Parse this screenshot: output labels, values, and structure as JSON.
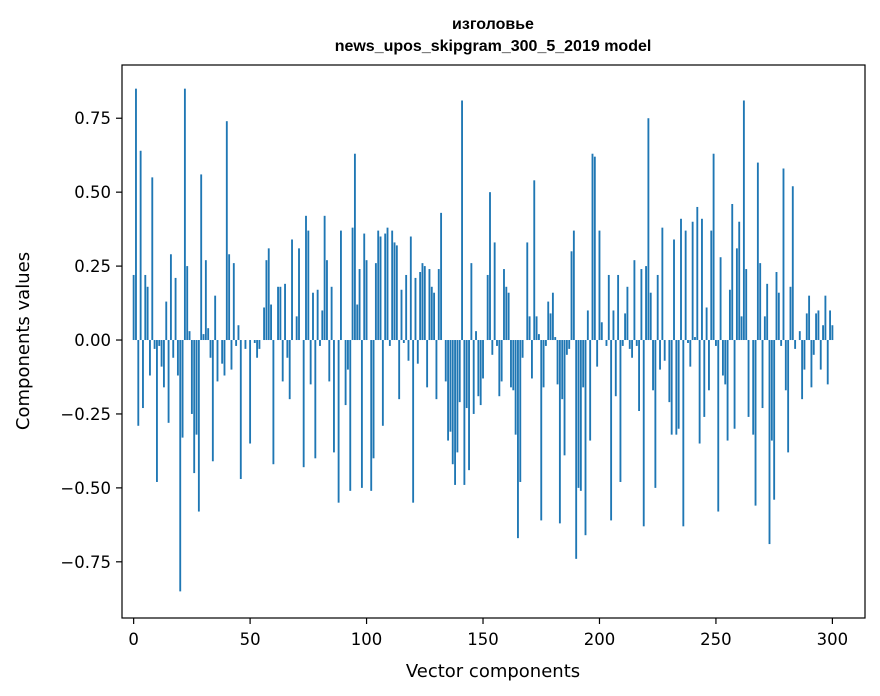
{
  "chart_data": {
    "type": "bar",
    "title": "изголовье",
    "subtitle": "news_upos_skipgram_300_5_2019 model",
    "xlabel": "Vector components",
    "ylabel": "Components values",
    "xlim": [
      -5,
      314
    ],
    "ylim": [
      -0.94,
      0.93
    ],
    "xticks": [
      0,
      50,
      100,
      150,
      200,
      250,
      300
    ],
    "xtick_labels": [
      "0",
      "50",
      "100",
      "150",
      "200",
      "250",
      "300"
    ],
    "yticks": [
      -0.75,
      -0.5,
      -0.25,
      0.0,
      0.25,
      0.5,
      0.75
    ],
    "ytick_labels": [
      "−0.75",
      "−0.50",
      "−0.25",
      "0.00",
      "0.25",
      "0.50",
      "0.75"
    ],
    "grid": false,
    "color": "#1f77b4",
    "x_start": 0,
    "values": [
      0.22,
      0.85,
      -0.29,
      0.64,
      -0.23,
      0.22,
      0.18,
      -0.12,
      0.55,
      -0.03,
      -0.48,
      -0.02,
      -0.09,
      -0.16,
      0.13,
      -0.28,
      0.29,
      -0.06,
      0.21,
      -0.12,
      -0.85,
      -0.33,
      0.85,
      0.25,
      0.03,
      -0.25,
      -0.45,
      -0.32,
      -0.58,
      0.56,
      0.02,
      0.27,
      0.04,
      -0.06,
      -0.41,
      0.15,
      -0.14,
      0.0,
      -0.08,
      -0.12,
      0.74,
      0.29,
      -0.1,
      0.26,
      -0.02,
      0.05,
      -0.47,
      0.0,
      -0.03,
      0.0,
      -0.35,
      0.0,
      -0.01,
      -0.06,
      -0.03,
      0.0,
      0.11,
      0.27,
      0.31,
      0.12,
      -0.42,
      0.0,
      0.18,
      0.18,
      -0.14,
      0.19,
      -0.06,
      -0.2,
      0.34,
      0.0,
      0.08,
      0.31,
      0.0,
      -0.43,
      0.42,
      0.37,
      -0.15,
      0.16,
      -0.4,
      0.17,
      -0.02,
      0.1,
      0.42,
      0.27,
      -0.14,
      0.18,
      -0.38,
      0.0,
      -0.55,
      0.37,
      0.0,
      -0.22,
      -0.1,
      -0.51,
      0.38,
      0.63,
      0.12,
      0.24,
      -0.5,
      0.36,
      0.27,
      0.0,
      -0.51,
      -0.4,
      0.26,
      0.37,
      0.35,
      -0.29,
      0.36,
      0.38,
      -0.02,
      0.37,
      0.33,
      0.32,
      -0.2,
      0.17,
      -0.01,
      0.22,
      -0.07,
      0.35,
      -0.55,
      0.21,
      -0.08,
      0.23,
      0.26,
      0.25,
      -0.16,
      0.24,
      0.18,
      0.16,
      -0.2,
      0.24,
      0.43,
      0.0,
      -0.14,
      -0.34,
      -0.31,
      -0.42,
      -0.49,
      -0.38,
      -0.21,
      0.81,
      -0.49,
      -0.23,
      -0.44,
      0.26,
      -0.25,
      0.03,
      -0.19,
      -0.22,
      -0.13,
      0.0,
      0.22,
      0.5,
      -0.05,
      0.33,
      -0.02,
      -0.19,
      -0.14,
      0.24,
      0.18,
      0.16,
      -0.16,
      -0.17,
      -0.32,
      -0.67,
      -0.48,
      -0.06,
      0.0,
      0.33,
      0.08,
      -0.13,
      0.54,
      0.08,
      0.02,
      -0.61,
      -0.16,
      -0.02,
      0.13,
      0.09,
      0.16,
      0.01,
      -0.15,
      -0.62,
      -0.2,
      -0.39,
      -0.05,
      -0.03,
      0.3,
      0.37,
      -0.74,
      -0.5,
      -0.51,
      -0.16,
      -0.66,
      0.1,
      -0.34,
      0.63,
      0.62,
      -0.09,
      0.37,
      0.06,
      0.0,
      -0.02,
      0.22,
      -0.61,
      0.1,
      -0.19,
      0.22,
      -0.48,
      -0.02,
      0.09,
      0.18,
      -0.03,
      -0.06,
      0.27,
      -0.02,
      -0.24,
      0.24,
      -0.63,
      0.25,
      0.75,
      0.16,
      -0.17,
      -0.5,
      0.22,
      -0.1,
      0.38,
      -0.07,
      0.0,
      -0.21,
      -0.32,
      0.34,
      -0.32,
      -0.3,
      0.41,
      -0.63,
      0.37,
      -0.01,
      -0.09,
      0.4,
      0.01,
      0.45,
      -0.35,
      0.41,
      -0.26,
      0.11,
      -0.17,
      0.37,
      0.63,
      -0.02,
      -0.58,
      0.28,
      -0.12,
      -0.15,
      -0.34,
      0.17,
      0.46,
      -0.3,
      0.31,
      0.4,
      0.08,
      0.81,
      0.24,
      -0.26,
      0.0,
      -0.32,
      -0.56,
      0.6,
      0.26,
      -0.23,
      0.08,
      0.19,
      -0.69,
      -0.34,
      -0.54,
      0.23,
      0.16,
      -0.02,
      0.58,
      -0.17,
      -0.38,
      0.18,
      0.52,
      -0.03,
      0.0,
      0.03,
      -0.2,
      -0.1,
      0.09,
      0.15,
      -0.16,
      -0.05,
      0.09,
      0.1,
      -0.1,
      0.05,
      0.15,
      -0.15,
      0.1,
      0.05
    ]
  }
}
